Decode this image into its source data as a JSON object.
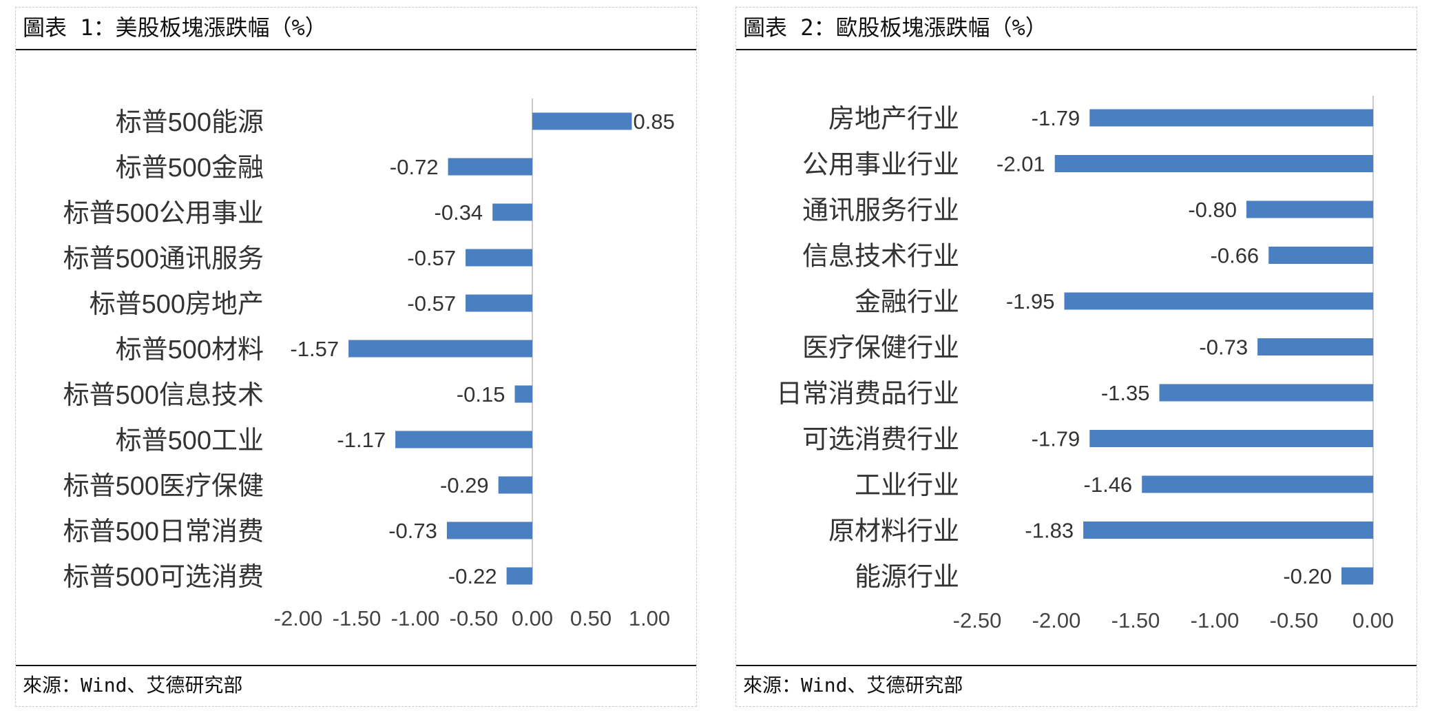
{
  "chart_data": [
    {
      "type": "bar",
      "orientation": "horizontal",
      "title": "圖表 1：美股板塊漲跌幅（%）",
      "source": "來源：Wind、艾德研究部",
      "categories": [
        "标普500能源",
        "标普500金融",
        "标普500公用事业",
        "标普500通讯服务",
        "标普500房地产",
        "标普500材料",
        "标普500信息技术",
        "标普500工业",
        "标普500医疗保健",
        "标普500日常消费",
        "标普500可选消费"
      ],
      "values": [
        0.85,
        -0.72,
        -0.34,
        -0.57,
        -0.57,
        -1.57,
        -0.15,
        -1.17,
        -0.29,
        -0.73,
        -0.22
      ],
      "value_labels": [
        "0.85",
        "-0.72",
        "-0.34",
        "-0.57",
        "-0.57",
        "-1.57",
        "-0.15",
        "-1.17",
        "-0.29",
        "-0.73",
        "-0.22"
      ],
      "xlim": [
        -2.0,
        1.0
      ],
      "xticks": [
        "-2.00",
        "-1.50",
        "-1.00",
        "-0.50",
        "0.00",
        "0.50",
        "1.00"
      ],
      "bar_color": "#4a7fc1",
      "grid": false,
      "legend": "none"
    },
    {
      "type": "bar",
      "orientation": "horizontal",
      "title": "圖表 2：歐股板塊漲跌幅（%）",
      "source": "來源：Wind、艾德研究部",
      "categories": [
        "房地产行业",
        "公用事业行业",
        "通讯服务行业",
        "信息技术行业",
        "金融行业",
        "医疗保健行业",
        "日常消费品行业",
        "可选消费行业",
        "工业行业",
        "原材料行业",
        "能源行业"
      ],
      "values": [
        -1.79,
        -2.01,
        -0.8,
        -0.66,
        -1.95,
        -0.73,
        -1.35,
        -1.79,
        -1.46,
        -1.83,
        -0.2
      ],
      "value_labels": [
        "-1.79",
        "-2.01",
        "-0.80",
        "-0.66",
        "-1.95",
        "-0.73",
        "-1.35",
        "-1.79",
        "-1.46",
        "-1.83",
        "-0.20"
      ],
      "xlim": [
        -2.5,
        0.0
      ],
      "xticks": [
        "-2.50",
        "-2.00",
        "-1.50",
        "-1.00",
        "-0.50",
        "0.00"
      ],
      "bar_color": "#4a7fc1",
      "grid": false,
      "legend": "none"
    }
  ]
}
